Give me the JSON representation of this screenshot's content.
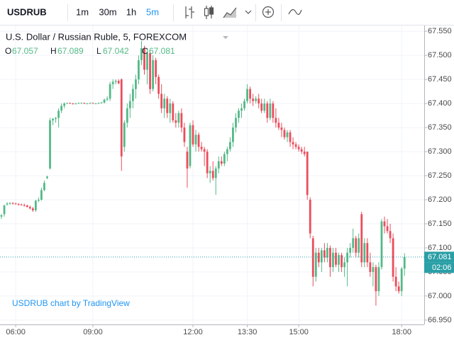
{
  "toolbar": {
    "symbol": "USDRUB",
    "intervals": [
      "1m",
      "30m",
      "1h",
      "5m"
    ],
    "active_interval": 3
  },
  "chart_data": {
    "type": "candlestick",
    "title": "U.S. Dollar / Russian Ruble, 5, FOREXCOM",
    "ohlc_labels": [
      "O",
      "H",
      "L",
      "C"
    ],
    "countdown": "02:06",
    "watermark": "USDRUB chart by TradingView",
    "up_color": "#53b987",
    "down_color": "#eb4d5c",
    "price_line_color": "#2a9fa6",
    "grid": true,
    "ylim": [
      66.941,
      67.562
    ],
    "yticks": [
      {
        "value": 67.55,
        "label": "67.550"
      },
      {
        "value": 67.5,
        "label": "67.500"
      },
      {
        "value": 67.45,
        "label": "67.450"
      },
      {
        "value": 67.4,
        "label": "67.400"
      },
      {
        "value": 67.35,
        "label": "67.350"
      },
      {
        "value": 67.3,
        "label": "67.300"
      },
      {
        "value": 67.25,
        "label": "67.250"
      },
      {
        "value": 67.2,
        "label": "67.200"
      },
      {
        "value": 67.15,
        "label": "67.150"
      },
      {
        "value": 67.1,
        "label": "67.100"
      },
      {
        "value": 67.05,
        "label": "67.050"
      },
      {
        "value": 67.0,
        "label": "67.000"
      },
      {
        "value": 66.95,
        "label": "66.950"
      }
    ],
    "categories": [
      null,
      null,
      null,
      null,
      null,
      "06:00",
      null,
      null,
      null,
      null,
      null,
      null,
      null,
      null,
      null,
      null,
      null,
      null,
      null,
      null,
      null,
      null,
      null,
      null,
      null,
      null,
      null,
      null,
      null,
      null,
      null,
      null,
      "09:00",
      null,
      null,
      null,
      null,
      null,
      null,
      null,
      null,
      null,
      null,
      null,
      null,
      null,
      null,
      null,
      null,
      null,
      null,
      null,
      null,
      null,
      null,
      null,
      null,
      null,
      null,
      null,
      null,
      null,
      null,
      null,
      null,
      null,
      null,
      "12:00",
      null,
      null,
      null,
      null,
      null,
      null,
      null,
      null,
      null,
      null,
      null,
      null,
      null,
      null,
      null,
      null,
      null,
      null,
      "13:30",
      null,
      null,
      null,
      null,
      null,
      null,
      null,
      null,
      null,
      null,
      null,
      null,
      null,
      null,
      null,
      null,
      null,
      "15:00",
      null,
      null,
      null,
      null,
      null,
      null,
      null,
      null,
      null,
      null,
      null,
      null,
      null,
      null,
      null,
      null,
      null,
      null,
      null,
      null,
      null,
      null,
      null,
      null,
      null,
      null,
      null,
      null,
      null,
      null,
      null,
      null,
      null,
      null,
      null,
      "18:00",
      null
    ],
    "open": [
      67.165,
      67.17,
      67.19,
      67.192,
      67.193,
      67.192,
      67.191,
      67.19,
      67.189,
      67.188,
      67.185,
      67.182,
      67.178,
      67.198,
      67.2,
      67.22,
      67.245,
      67.265,
      67.365,
      67.368,
      67.37,
      67.385,
      67.395,
      67.4,
      67.401,
      67.4,
      67.399,
      67.4,
      67.401,
      67.401,
      67.4,
      67.4,
      67.401,
      67.4,
      67.4,
      67.401,
      67.402,
      67.408,
      67.41,
      67.44,
      67.445,
      67.447,
      67.45,
      67.31,
      67.36,
      67.39,
      67.405,
      67.43,
      67.45,
      67.49,
      67.515,
      67.47,
      67.505,
      67.43,
      67.49,
      67.455,
      67.42,
      67.39,
      67.41,
      67.38,
      67.4,
      67.365,
      67.36,
      67.38,
      67.35,
      67.3,
      67.27,
      67.355,
      67.315,
      67.335,
      67.31,
      67.305,
      67.3,
      67.255,
      67.26,
      67.245,
      67.265,
      67.28,
      67.275,
      67.295,
      67.305,
      67.32,
      67.35,
      67.37,
      67.385,
      67.39,
      67.405,
      67.43,
      67.41,
      67.405,
      67.41,
      67.4,
      67.385,
      67.4,
      67.37,
      67.4,
      67.37,
      67.36,
      67.35,
      67.345,
      67.33,
      67.34,
      67.32,
      67.315,
      67.31,
      67.305,
      67.3,
      67.3,
      67.2,
      67.12,
      67.04,
      67.09,
      67.07,
      67.095,
      67.08,
      67.1,
      67.06,
      67.09,
      67.065,
      67.085,
      67.06,
      67.07,
      67.09,
      67.1,
      67.12,
      67.09,
      67.17,
      67.07,
      67.11,
      67.07,
      67.05,
      67.06,
      67.01,
      67.06,
      67.155,
      67.145,
      67.135,
      67.12,
      67.04,
      67.02,
      67.01,
      67.057
    ],
    "high": [
      67.17,
      67.19,
      67.195,
      67.195,
      67.195,
      67.194,
      67.193,
      67.192,
      67.192,
      67.19,
      67.188,
      67.185,
      67.2,
      67.205,
      67.225,
      67.24,
      67.25,
      67.37,
      67.37,
      67.372,
      67.39,
      67.4,
      67.402,
      67.402,
      67.402,
      67.401,
      67.401,
      67.402,
      67.402,
      67.402,
      67.401,
      67.402,
      67.402,
      67.401,
      67.402,
      67.403,
      67.41,
      67.415,
      67.445,
      67.45,
      67.45,
      67.45,
      67.452,
      67.365,
      67.4,
      67.42,
      67.44,
      67.46,
      67.5,
      67.53,
      67.52,
      67.515,
      67.51,
      67.5,
      67.495,
      67.46,
      67.44,
      67.42,
      67.415,
      67.41,
      67.405,
      67.38,
      67.385,
      67.39,
      67.36,
      67.31,
      67.36,
      67.365,
      67.345,
      67.34,
      67.32,
      67.31,
      67.305,
      67.27,
      67.28,
      67.27,
      67.29,
      67.29,
      67.3,
      67.31,
      67.33,
      67.36,
      67.38,
      67.39,
      67.4,
      67.41,
      67.44,
      67.435,
      67.42,
      67.415,
      67.42,
      67.41,
      67.41,
      67.405,
      67.41,
      67.405,
      67.39,
      67.37,
      67.36,
      67.35,
      67.345,
      67.345,
      67.33,
      67.32,
      67.315,
      67.31,
      67.31,
      67.3,
      67.205,
      67.125,
      67.1,
      67.1,
      67.1,
      67.11,
      67.11,
      67.105,
      67.1,
      67.1,
      67.09,
      67.09,
      67.08,
      67.1,
      67.11,
      67.14,
      67.125,
      67.13,
      67.175,
      67.12,
      67.12,
      67.09,
      67.07,
      67.065,
      67.07,
      67.16,
      67.165,
      67.16,
      67.15,
      67.13,
      67.06,
      67.03,
      67.06,
      67.089
    ],
    "low": [
      67.16,
      67.165,
      67.188,
      67.19,
      67.19,
      67.19,
      67.188,
      67.188,
      67.186,
      67.184,
      67.18,
      67.175,
      67.175,
      67.195,
      67.198,
      67.218,
      67.243,
      67.263,
      67.355,
      67.36,
      67.35,
      67.38,
      67.39,
      67.399,
      67.399,
      67.398,
      67.398,
      67.399,
      67.4,
      67.399,
      67.399,
      67.399,
      67.4,
      67.399,
      67.399,
      67.4,
      67.4,
      67.405,
      67.405,
      67.43,
      67.44,
      67.44,
      67.26,
      67.3,
      67.35,
      67.37,
      67.39,
      67.41,
      67.44,
      67.48,
      67.46,
      67.44,
      67.42,
      67.425,
      67.44,
      67.41,
      67.38,
      67.37,
      67.37,
      67.36,
      67.36,
      67.35,
      67.35,
      67.34,
      67.31,
      67.225,
      67.265,
      67.31,
      67.3,
      67.3,
      67.3,
      67.27,
      67.245,
      67.235,
      67.24,
      67.21,
      67.255,
      67.27,
      67.27,
      67.28,
      67.3,
      67.31,
      67.34,
      67.36,
      67.37,
      67.385,
      67.4,
      67.4,
      67.395,
      67.4,
      67.39,
      67.38,
      67.38,
      67.36,
      67.365,
      67.36,
      67.35,
      67.345,
      67.33,
      67.325,
      67.32,
      67.31,
      67.305,
      67.305,
      67.3,
      67.295,
      67.29,
      67.2,
      67.12,
      67.02,
      67.03,
      67.06,
      67.05,
      67.07,
      67.07,
      67.04,
      67.05,
      67.06,
      67.05,
      67.05,
      67.04,
      67.02,
      67.08,
      67.09,
      67.08,
      67.08,
      67.06,
      67.06,
      67.06,
      67.04,
      67.02,
      66.98,
      67.0,
      67.055,
      67.13,
      67.13,
      67.11,
      67.03,
      67.01,
      67.005,
      67.0,
      67.042
    ],
    "close": [
      67.168,
      67.188,
      67.192,
      67.193,
      67.192,
      67.191,
      67.19,
      67.189,
      67.188,
      67.185,
      67.182,
      67.178,
      67.198,
      67.2,
      67.22,
      67.235,
      67.248,
      67.365,
      67.368,
      67.37,
      67.385,
      67.395,
      67.4,
      67.401,
      67.4,
      67.399,
      67.4,
      67.401,
      67.401,
      67.4,
      67.4,
      67.401,
      67.4,
      67.4,
      67.401,
      67.402,
      67.408,
      67.41,
      67.44,
      67.445,
      67.447,
      67.442,
      67.29,
      67.36,
      67.39,
      67.405,
      67.43,
      67.45,
      67.49,
      67.515,
      67.47,
      67.505,
      67.43,
      67.49,
      67.455,
      67.42,
      67.39,
      67.41,
      67.38,
      67.4,
      67.365,
      67.36,
      67.38,
      67.35,
      67.32,
      67.265,
      67.355,
      67.315,
      67.335,
      67.31,
      67.305,
      67.3,
      67.255,
      67.26,
      67.245,
      67.265,
      67.28,
      67.275,
      67.295,
      67.305,
      67.32,
      67.35,
      67.37,
      67.385,
      67.39,
      67.405,
      67.43,
      67.41,
      67.405,
      67.41,
      67.4,
      67.385,
      67.4,
      67.37,
      67.4,
      67.37,
      67.36,
      67.35,
      67.345,
      67.33,
      67.34,
      67.32,
      67.315,
      67.31,
      67.305,
      67.3,
      67.295,
      67.21,
      67.13,
      67.04,
      67.09,
      67.07,
      67.095,
      67.08,
      67.1,
      67.06,
      67.09,
      67.065,
      67.085,
      67.06,
      67.07,
      67.09,
      67.1,
      67.12,
      67.09,
      67.12,
      67.07,
      67.11,
      67.07,
      67.05,
      67.06,
      67.01,
      67.06,
      67.155,
      67.145,
      67.135,
      67.12,
      67.04,
      67.02,
      67.01,
      67.057,
      67.081
    ]
  }
}
